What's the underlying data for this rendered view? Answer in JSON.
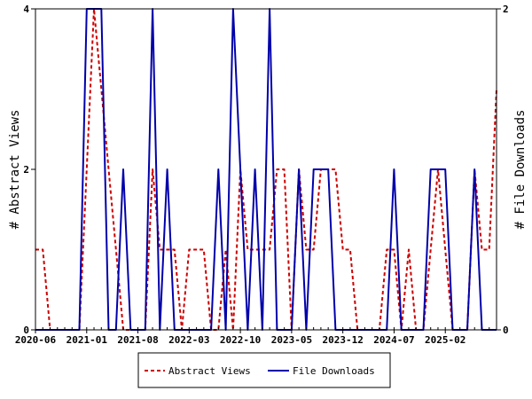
{
  "chart_data": {
    "type": "line",
    "title": "",
    "x_tick_labels": [
      "2020-06",
      "2021-01",
      "2021-08",
      "2022-03",
      "2022-10",
      "2023-05",
      "2023-12",
      "2024-07",
      "2025-02"
    ],
    "x_tick_months": [
      0,
      7,
      14,
      21,
      28,
      35,
      42,
      49,
      56
    ],
    "x_range_months": [
      0,
      63
    ],
    "left_axis": {
      "label": "# Abstract Views",
      "range": [
        0,
        4
      ],
      "ticks": [
        "0",
        "2",
        "4"
      ]
    },
    "right_axis": {
      "label": "# File Downloads",
      "range": [
        0,
        2
      ],
      "ticks": [
        "0",
        "2"
      ]
    },
    "series": [
      {
        "name": "Abstract Views",
        "axis": "left",
        "color": "#cc0000",
        "style": "dashed",
        "x": [
          0,
          1,
          2,
          3,
          4,
          5,
          6,
          7,
          8,
          9,
          10,
          11,
          12,
          13,
          14,
          15,
          16,
          17,
          18,
          19,
          20,
          21,
          22,
          23,
          24,
          25,
          26,
          27,
          28,
          29,
          30,
          31,
          32,
          33,
          34,
          35,
          36,
          37,
          38,
          39,
          40,
          41,
          42,
          43,
          44,
          45,
          46,
          47,
          48,
          49,
          50,
          51,
          52,
          53,
          54,
          55,
          56,
          57,
          58,
          59,
          60,
          61,
          62,
          63
        ],
        "y": [
          1,
          1,
          0,
          0,
          0,
          0,
          0,
          2,
          4,
          3,
          2,
          1,
          0,
          0,
          0,
          0,
          2,
          1,
          1,
          1,
          0,
          1,
          1,
          1,
          0,
          0,
          1,
          0,
          2,
          1,
          1,
          1,
          1,
          2,
          2,
          0,
          2,
          1,
          1,
          2,
          2,
          2,
          1,
          1,
          0,
          0,
          0,
          0,
          1,
          1,
          0,
          1,
          0,
          0,
          1,
          2,
          1,
          0,
          0,
          0,
          2,
          1,
          1,
          3
        ]
      },
      {
        "name": "File Downloads",
        "axis": "right",
        "color": "#0000aa",
        "style": "solid",
        "x": [
          0,
          1,
          2,
          3,
          4,
          5,
          6,
          7,
          8,
          9,
          10,
          11,
          12,
          13,
          14,
          15,
          16,
          17,
          18,
          19,
          20,
          21,
          22,
          23,
          24,
          25,
          26,
          27,
          28,
          29,
          30,
          31,
          32,
          33,
          34,
          35,
          36,
          37,
          38,
          39,
          40,
          41,
          42,
          43,
          44,
          45,
          46,
          47,
          48,
          49,
          50,
          51,
          52,
          53,
          54,
          55,
          56,
          57,
          58,
          59,
          60,
          61,
          62,
          63
        ],
        "y": [
          0,
          0,
          0,
          0,
          0,
          0,
          0,
          2,
          2,
          2,
          0,
          0,
          1,
          0,
          0,
          0,
          2,
          0,
          1,
          0,
          0,
          0,
          0,
          0,
          0,
          1,
          0,
          2,
          1,
          0,
          1,
          0,
          2,
          0,
          0,
          0,
          1,
          0,
          1,
          1,
          1,
          0,
          0,
          0,
          0,
          0,
          0,
          0,
          0,
          1,
          0,
          0,
          0,
          0,
          1,
          1,
          1,
          0,
          0,
          0,
          1,
          0,
          0,
          0
        ]
      }
    ],
    "legend_position": "bottom-center",
    "grid": false
  }
}
